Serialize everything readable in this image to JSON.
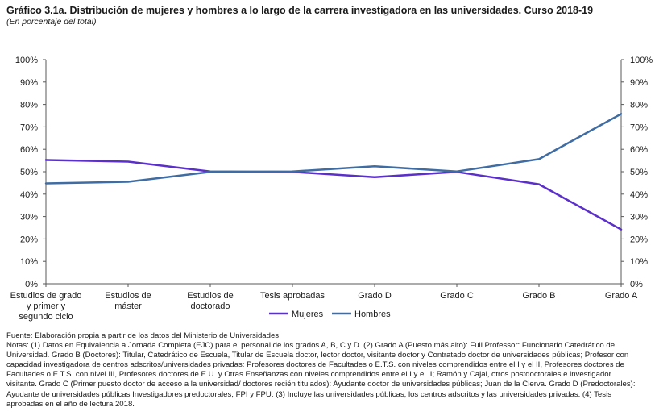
{
  "header": {
    "title": "Gráfico 3.1a. Distribución de mujeres y hombres a lo largo de la carrera investigadora en las universidades. Curso 2018-19",
    "subtitle": "(En porcentaje del total)"
  },
  "chart_data": {
    "type": "line",
    "categories": [
      "Estudios de grado y primer y segundo ciclo",
      "Estudios de máster",
      "Estudios de doctorado",
      "Tesis aprobadas",
      "Grado D",
      "Grado C",
      "Grado B",
      "Grado A"
    ],
    "category_lines": [
      [
        "Estudios de grado",
        "y primer y",
        "segundo ciclo"
      ],
      [
        "Estudios de",
        "máster"
      ],
      [
        "Estudios de",
        "doctorado"
      ],
      [
        "Tesis aprobadas"
      ],
      [
        "Grado D"
      ],
      [
        "Grado C"
      ],
      [
        "Grado B"
      ],
      [
        "Grado A"
      ]
    ],
    "series": [
      {
        "name": "Mujeres",
        "color": "#5b2fc9",
        "values": [
          55.2,
          54.5,
          50.1,
          49.9,
          47.6,
          49.9,
          44.4,
          24.2
        ]
      },
      {
        "name": "Hombres",
        "color": "#3f6da3",
        "values": [
          44.8,
          45.5,
          49.9,
          50.1,
          52.4,
          50.1,
          55.6,
          75.8
        ]
      }
    ],
    "ylim": [
      0,
      100
    ],
    "yticks": [
      "0%",
      "10%",
      "20%",
      "30%",
      "40%",
      "50%",
      "60%",
      "70%",
      "80%",
      "90%",
      "100%"
    ],
    "y_axis_both_sides": true,
    "grid": false,
    "legend_position": "bottom-center"
  },
  "notes": {
    "source": "Fuente: Elaboración propia a partir de los datos del Ministerio de Universidades.",
    "text": "Notas: (1) Datos en Equivalencia a Jornada Completa (EJC) para el personal de los grados A, B, C y D. (2) Grado A (Puesto más alto): Full Professor: Funcionario Catedrático de Universidad. Grado B (Doctores): Titular, Catedrático de Escuela, Titular de Escuela doctor, lector doctor, visitante doctor y Contratado doctor de universidades públicas; Profesor con capacidad investigadora de centros adscritos/universidades privadas: Profesores doctores de Facultades o E.T.S. con niveles comprendidos entre el I y el II, Profesores doctores de Facultades o E.T.S. con nivel III, Profesores doctores de E.U. y Otras Enseñanzas con niveles comprendidos entre el I y el II; Ramón y Cajal, otros postdoctorales e investigador visitante. Grado C (Primer puesto doctor de acceso a la universidad/ doctores recién titulados): Ayudante doctor de universidades públicas; Juan de la Cierva. Grado D (Predoctorales): Ayudante de universidades públicas Investigadores predoctorales, FPI y FPU. (3) Incluye las universidades públicas, los centros adscritos y las universidades privadas. (4) Tesis aprobadas en el año de lectura 2018."
  }
}
